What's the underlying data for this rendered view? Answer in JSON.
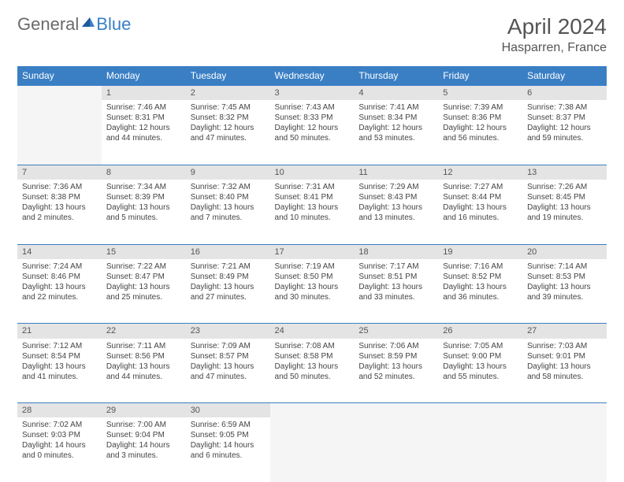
{
  "logo": {
    "text1": "General",
    "text2": "Blue",
    "color1": "#6a6a6a",
    "color2": "#3a7fc4"
  },
  "title": {
    "month": "April 2024",
    "location": "Hasparren, France",
    "month_fontsize": 28,
    "location_fontsize": 16,
    "color": "#555555"
  },
  "calendar": {
    "header_bg": "#3a7fc4",
    "header_fg": "#ffffff",
    "daynum_bg": "#e4e4e4",
    "empty_bg": "#f5f5f5",
    "border_color": "#3a7fc4",
    "days": [
      "Sunday",
      "Monday",
      "Tuesday",
      "Wednesday",
      "Thursday",
      "Friday",
      "Saturday"
    ],
    "weeks": [
      [
        null,
        {
          "n": "1",
          "sunrise": "Sunrise: 7:46 AM",
          "sunset": "Sunset: 8:31 PM",
          "day1": "Daylight: 12 hours",
          "day2": "and 44 minutes."
        },
        {
          "n": "2",
          "sunrise": "Sunrise: 7:45 AM",
          "sunset": "Sunset: 8:32 PM",
          "day1": "Daylight: 12 hours",
          "day2": "and 47 minutes."
        },
        {
          "n": "3",
          "sunrise": "Sunrise: 7:43 AM",
          "sunset": "Sunset: 8:33 PM",
          "day1": "Daylight: 12 hours",
          "day2": "and 50 minutes."
        },
        {
          "n": "4",
          "sunrise": "Sunrise: 7:41 AM",
          "sunset": "Sunset: 8:34 PM",
          "day1": "Daylight: 12 hours",
          "day2": "and 53 minutes."
        },
        {
          "n": "5",
          "sunrise": "Sunrise: 7:39 AM",
          "sunset": "Sunset: 8:36 PM",
          "day1": "Daylight: 12 hours",
          "day2": "and 56 minutes."
        },
        {
          "n": "6",
          "sunrise": "Sunrise: 7:38 AM",
          "sunset": "Sunset: 8:37 PM",
          "day1": "Daylight: 12 hours",
          "day2": "and 59 minutes."
        }
      ],
      [
        {
          "n": "7",
          "sunrise": "Sunrise: 7:36 AM",
          "sunset": "Sunset: 8:38 PM",
          "day1": "Daylight: 13 hours",
          "day2": "and 2 minutes."
        },
        {
          "n": "8",
          "sunrise": "Sunrise: 7:34 AM",
          "sunset": "Sunset: 8:39 PM",
          "day1": "Daylight: 13 hours",
          "day2": "and 5 minutes."
        },
        {
          "n": "9",
          "sunrise": "Sunrise: 7:32 AM",
          "sunset": "Sunset: 8:40 PM",
          "day1": "Daylight: 13 hours",
          "day2": "and 7 minutes."
        },
        {
          "n": "10",
          "sunrise": "Sunrise: 7:31 AM",
          "sunset": "Sunset: 8:41 PM",
          "day1": "Daylight: 13 hours",
          "day2": "and 10 minutes."
        },
        {
          "n": "11",
          "sunrise": "Sunrise: 7:29 AM",
          "sunset": "Sunset: 8:43 PM",
          "day1": "Daylight: 13 hours",
          "day2": "and 13 minutes."
        },
        {
          "n": "12",
          "sunrise": "Sunrise: 7:27 AM",
          "sunset": "Sunset: 8:44 PM",
          "day1": "Daylight: 13 hours",
          "day2": "and 16 minutes."
        },
        {
          "n": "13",
          "sunrise": "Sunrise: 7:26 AM",
          "sunset": "Sunset: 8:45 PM",
          "day1": "Daylight: 13 hours",
          "day2": "and 19 minutes."
        }
      ],
      [
        {
          "n": "14",
          "sunrise": "Sunrise: 7:24 AM",
          "sunset": "Sunset: 8:46 PM",
          "day1": "Daylight: 13 hours",
          "day2": "and 22 minutes."
        },
        {
          "n": "15",
          "sunrise": "Sunrise: 7:22 AM",
          "sunset": "Sunset: 8:47 PM",
          "day1": "Daylight: 13 hours",
          "day2": "and 25 minutes."
        },
        {
          "n": "16",
          "sunrise": "Sunrise: 7:21 AM",
          "sunset": "Sunset: 8:49 PM",
          "day1": "Daylight: 13 hours",
          "day2": "and 27 minutes."
        },
        {
          "n": "17",
          "sunrise": "Sunrise: 7:19 AM",
          "sunset": "Sunset: 8:50 PM",
          "day1": "Daylight: 13 hours",
          "day2": "and 30 minutes."
        },
        {
          "n": "18",
          "sunrise": "Sunrise: 7:17 AM",
          "sunset": "Sunset: 8:51 PM",
          "day1": "Daylight: 13 hours",
          "day2": "and 33 minutes."
        },
        {
          "n": "19",
          "sunrise": "Sunrise: 7:16 AM",
          "sunset": "Sunset: 8:52 PM",
          "day1": "Daylight: 13 hours",
          "day2": "and 36 minutes."
        },
        {
          "n": "20",
          "sunrise": "Sunrise: 7:14 AM",
          "sunset": "Sunset: 8:53 PM",
          "day1": "Daylight: 13 hours",
          "day2": "and 39 minutes."
        }
      ],
      [
        {
          "n": "21",
          "sunrise": "Sunrise: 7:12 AM",
          "sunset": "Sunset: 8:54 PM",
          "day1": "Daylight: 13 hours",
          "day2": "and 41 minutes."
        },
        {
          "n": "22",
          "sunrise": "Sunrise: 7:11 AM",
          "sunset": "Sunset: 8:56 PM",
          "day1": "Daylight: 13 hours",
          "day2": "and 44 minutes."
        },
        {
          "n": "23",
          "sunrise": "Sunrise: 7:09 AM",
          "sunset": "Sunset: 8:57 PM",
          "day1": "Daylight: 13 hours",
          "day2": "and 47 minutes."
        },
        {
          "n": "24",
          "sunrise": "Sunrise: 7:08 AM",
          "sunset": "Sunset: 8:58 PM",
          "day1": "Daylight: 13 hours",
          "day2": "and 50 minutes."
        },
        {
          "n": "25",
          "sunrise": "Sunrise: 7:06 AM",
          "sunset": "Sunset: 8:59 PM",
          "day1": "Daylight: 13 hours",
          "day2": "and 52 minutes."
        },
        {
          "n": "26",
          "sunrise": "Sunrise: 7:05 AM",
          "sunset": "Sunset: 9:00 PM",
          "day1": "Daylight: 13 hours",
          "day2": "and 55 minutes."
        },
        {
          "n": "27",
          "sunrise": "Sunrise: 7:03 AM",
          "sunset": "Sunset: 9:01 PM",
          "day1": "Daylight: 13 hours",
          "day2": "and 58 minutes."
        }
      ],
      [
        {
          "n": "28",
          "sunrise": "Sunrise: 7:02 AM",
          "sunset": "Sunset: 9:03 PM",
          "day1": "Daylight: 14 hours",
          "day2": "and 0 minutes."
        },
        {
          "n": "29",
          "sunrise": "Sunrise: 7:00 AM",
          "sunset": "Sunset: 9:04 PM",
          "day1": "Daylight: 14 hours",
          "day2": "and 3 minutes."
        },
        {
          "n": "30",
          "sunrise": "Sunrise: 6:59 AM",
          "sunset": "Sunset: 9:05 PM",
          "day1": "Daylight: 14 hours",
          "day2": "and 6 minutes."
        },
        null,
        null,
        null,
        null
      ]
    ]
  }
}
